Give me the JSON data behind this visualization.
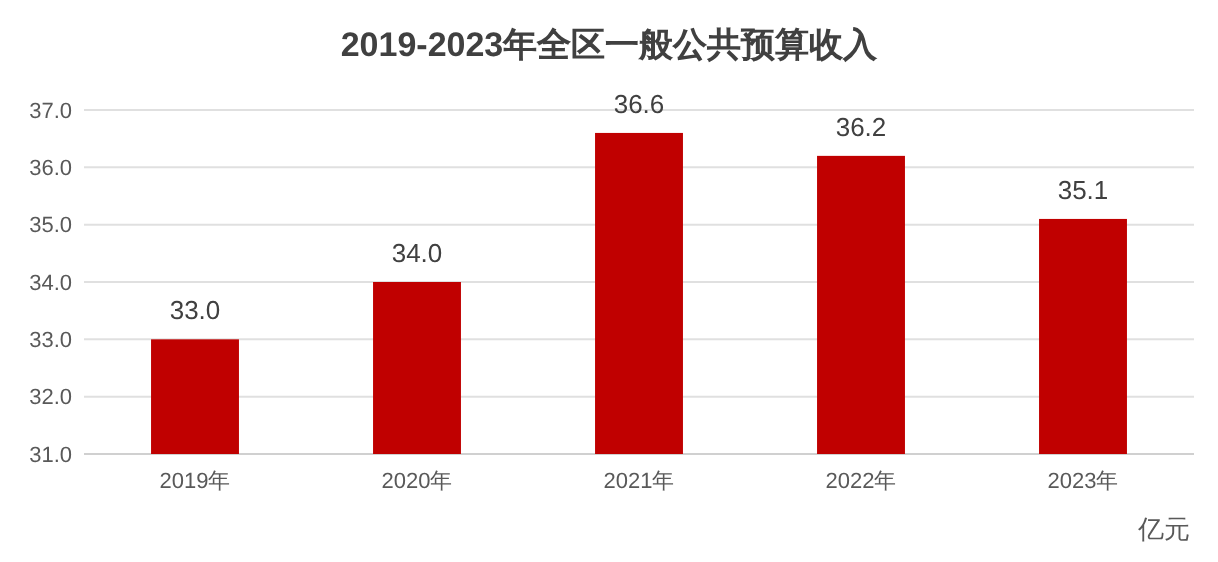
{
  "chart_data": {
    "type": "bar",
    "title": "2019-2023年全区一般公共预算收入",
    "categories": [
      "2019年",
      "2020年",
      "2021年",
      "2022年",
      "2023年"
    ],
    "values": [
      33.0,
      34.0,
      36.6,
      36.2,
      35.1
    ],
    "value_labels": [
      "33.0",
      "34.0",
      "36.6",
      "36.2",
      "35.1"
    ],
    "color": "#c00000",
    "ylim": [
      31,
      37
    ],
    "yticks": [
      {
        "value": 31,
        "label": "31.0"
      },
      {
        "value": 32,
        "label": "32.0"
      },
      {
        "value": 33,
        "label": "33.0"
      },
      {
        "value": 34,
        "label": "34.0"
      },
      {
        "value": 35,
        "label": "35.0"
      },
      {
        "value": 36,
        "label": "36.0"
      },
      {
        "value": 37,
        "label": "37.0"
      }
    ],
    "grid": "y",
    "annotations": [
      "亿元"
    ]
  }
}
